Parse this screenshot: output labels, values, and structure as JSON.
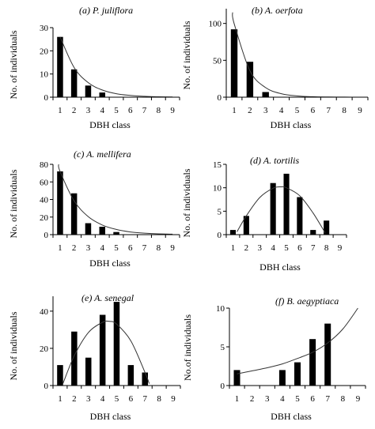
{
  "chart_data": [
    {
      "type": "bar",
      "title": "(a) P. juliflora",
      "xlabel": "DBH  class",
      "ylabel": "No. of individuals",
      "categories": [
        "1",
        "2",
        "3",
        "4",
        "5",
        "6",
        "7",
        "8",
        "9"
      ],
      "values": [
        26,
        12,
        5,
        2,
        0,
        0,
        0,
        0,
        0
      ],
      "ylim": [
        0,
        30
      ],
      "yticks": [
        0,
        10,
        20,
        30
      ],
      "trend": "exponential",
      "trend_points": [
        [
          1,
          26
        ],
        [
          2,
          12.8
        ],
        [
          3,
          6.3
        ],
        [
          4,
          3.1
        ],
        [
          5,
          1.5
        ],
        [
          6,
          0.75
        ],
        [
          7,
          0.37
        ],
        [
          8,
          0.18
        ],
        [
          9,
          0.09
        ]
      ]
    },
    {
      "type": "bar",
      "title": "(b) A. oerfota",
      "xlabel": "DBH  class",
      "ylabel": "No. of individuals",
      "categories": [
        "1",
        "2",
        "3",
        "4",
        "5",
        "6",
        "7",
        "8",
        "9"
      ],
      "values": [
        92,
        48,
        7,
        0,
        0,
        0,
        0,
        0,
        0
      ],
      "ylim": [
        0,
        120
      ],
      "yticks": [
        0,
        50,
        100
      ],
      "trend": "exponential",
      "trend_points": [
        [
          0.9,
          115
        ],
        [
          1,
          100
        ],
        [
          2,
          36
        ],
        [
          3,
          13
        ],
        [
          4,
          4.7
        ],
        [
          5,
          1.7
        ],
        [
          6,
          0.6
        ],
        [
          7,
          0.22
        ],
        [
          8,
          0.08
        ],
        [
          9,
          0.03
        ]
      ]
    },
    {
      "type": "bar",
      "title": "(c) A. mellifera",
      "xlabel": "DBH  class",
      "ylabel": "No. of individuals",
      "categories": [
        "1",
        "2",
        "3",
        "4",
        "5",
        "6",
        "7",
        "8",
        "9"
      ],
      "values": [
        72,
        47,
        13,
        9,
        3,
        0,
        0,
        0,
        0
      ],
      "ylim": [
        0,
        80
      ],
      "yticks": [
        0,
        20,
        40,
        60,
        80
      ],
      "trend": "exponential",
      "trend_points": [
        [
          0.9,
          80
        ],
        [
          1,
          72
        ],
        [
          2,
          38.5
        ],
        [
          3,
          20.6
        ],
        [
          4,
          11
        ],
        [
          5,
          5.9
        ],
        [
          6,
          3.1
        ],
        [
          7,
          1.7
        ],
        [
          8,
          0.9
        ],
        [
          9,
          0.5
        ]
      ]
    },
    {
      "type": "bar",
      "title": "(d) A. tortilis",
      "xlabel": "DBH  class",
      "ylabel": "No. of individuals",
      "categories": [
        "1",
        "2",
        "3",
        "4",
        "5",
        "6",
        "7",
        "8",
        "9"
      ],
      "values": [
        1,
        4,
        0,
        11,
        13,
        8,
        1,
        3,
        0
      ],
      "ylim": [
        0,
        15
      ],
      "yticks": [
        0,
        5,
        10,
        15
      ],
      "trend": "polynomial",
      "trend_points": [
        [
          1.3,
          0.6
        ],
        [
          2,
          4.0
        ],
        [
          3,
          7.9
        ],
        [
          4,
          9.9
        ],
        [
          4.6,
          10.2
        ],
        [
          5,
          10.0
        ],
        [
          6,
          8.3
        ],
        [
          7,
          4.6
        ],
        [
          7.9,
          0.4
        ]
      ]
    },
    {
      "type": "bar",
      "title": "(e) A. senegal",
      "xlabel": "DBH class",
      "ylabel": "No. of individuals",
      "categories": [
        "1",
        "2",
        "3",
        "4",
        "5",
        "6",
        "7",
        "8",
        "9"
      ],
      "values": [
        11,
        29,
        15,
        38,
        45,
        11,
        7,
        0,
        0
      ],
      "ylim": [
        0,
        48
      ],
      "yticks": [
        0,
        20,
        40
      ],
      "trend": "polynomial",
      "trend_points": [
        [
          1.2,
          1
        ],
        [
          2,
          16
        ],
        [
          3,
          28.5
        ],
        [
          4,
          34
        ],
        [
          4.5,
          34.5
        ],
        [
          5,
          33
        ],
        [
          6,
          24
        ],
        [
          7,
          7
        ],
        [
          7.3,
          1
        ]
      ]
    },
    {
      "type": "bar",
      "title": "(f) B. aegyptiaca",
      "xlabel": "DBH class",
      "ylabel": "No.of individuals",
      "categories": [
        "1",
        "2",
        "3",
        "4",
        "5",
        "6",
        "7",
        "8",
        "9"
      ],
      "values": [
        2,
        0,
        0,
        2,
        3,
        6,
        8,
        0,
        0
      ],
      "ylim": [
        0,
        10
      ],
      "yticks": [
        0,
        5,
        10
      ],
      "trend": "exponential",
      "trend_points": [
        [
          1,
          1.5
        ],
        [
          2,
          1.9
        ],
        [
          3,
          2.3
        ],
        [
          4,
          2.8
        ],
        [
          5,
          3.5
        ],
        [
          6,
          4.3
        ],
        [
          7,
          5.5
        ],
        [
          8,
          7.3
        ],
        [
          9,
          10
        ]
      ]
    }
  ]
}
